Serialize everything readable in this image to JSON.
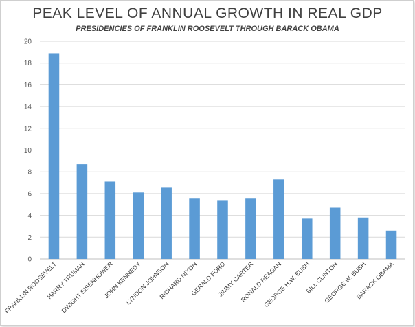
{
  "chart_data": {
    "type": "bar",
    "title": "PEAK LEVEL OF ANNUAL GROWTH IN REAL GDP",
    "subtitle": "PRESIDENCIES OF FRANKLIN ROOSEVELT THROUGH BARACK OBAMA",
    "xlabel": "",
    "ylabel": "",
    "ylim": [
      0,
      20
    ],
    "yticks": [
      "0",
      "2",
      "4",
      "6",
      "8",
      "10",
      "12",
      "14",
      "16",
      "18",
      "20"
    ],
    "grid": true,
    "bar_color": "#5B9BD5",
    "grid_color": "#d9d9d9",
    "categories": [
      "FRANKLIN ROOSEVELT",
      "HARRY TRUMAN",
      "DWIGHT EISENHOWER",
      "JOHN KENNEDY",
      "LYNDON JOHNSON",
      "RICHARD NIXON",
      "GERALD FORD",
      "JIMMY CARTER",
      "RONALD REAGAN",
      "GEORGE H.W. BUSH",
      "BILL CLINTON",
      "GEORGE W. BUSH",
      "BARACK OBAMA"
    ],
    "values": [
      18.9,
      8.7,
      7.1,
      6.1,
      6.6,
      5.6,
      5.4,
      5.6,
      7.3,
      3.7,
      4.7,
      3.8,
      2.6
    ]
  }
}
